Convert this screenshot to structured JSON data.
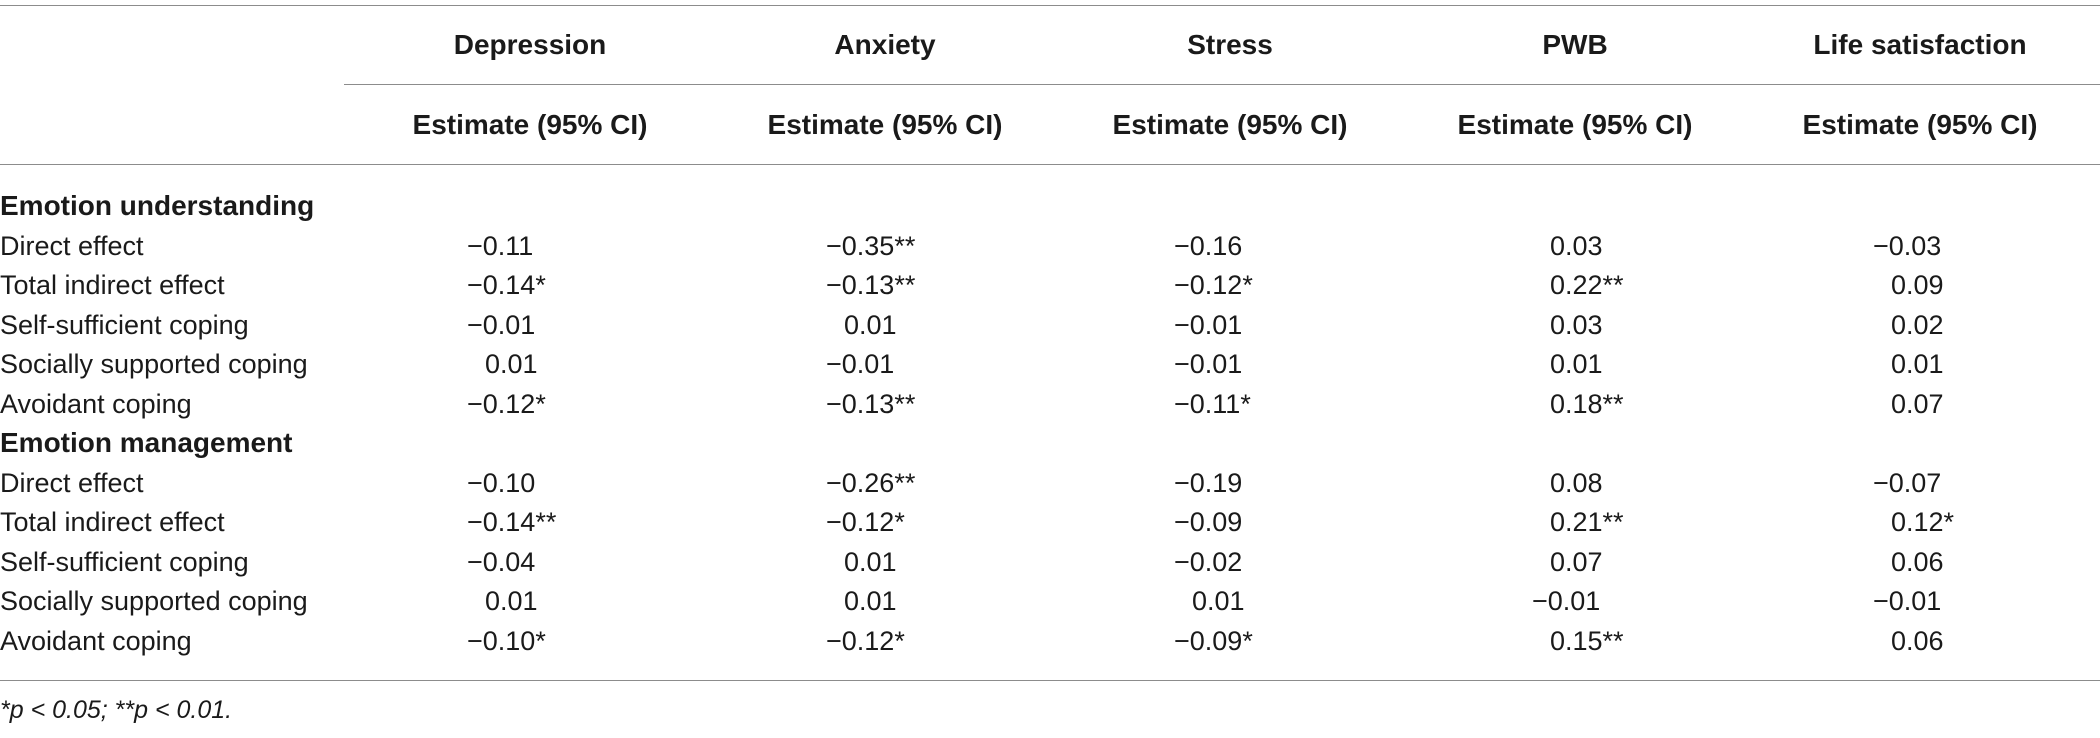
{
  "table": {
    "outcomes": [
      "Depression",
      "Anxiety",
      "Stress",
      "PWB",
      "Life satisfaction"
    ],
    "subheader": "Estimate (95% CI)",
    "sections": [
      {
        "title": "Emotion understanding",
        "rows": [
          {
            "label": "Direct effect",
            "values": [
              "−0.11",
              "−0.35**",
              "−0.16",
              "0.03",
              "−0.03"
            ]
          },
          {
            "label": "Total indirect effect",
            "values": [
              "−0.14*",
              "−0.13**",
              "−0.12*",
              "0.22**",
              "0.09"
            ]
          },
          {
            "label": "Self-sufficient coping",
            "values": [
              "−0.01",
              "0.01",
              "−0.01",
              "0.03",
              "0.02"
            ]
          },
          {
            "label": "Socially supported coping",
            "values": [
              "0.01",
              "−0.01",
              "−0.01",
              "0.01",
              "0.01"
            ]
          },
          {
            "label": "Avoidant coping",
            "values": [
              "−0.12*",
              "−0.13**",
              "−0.11*",
              "0.18**",
              "0.07"
            ]
          }
        ]
      },
      {
        "title": "Emotion management",
        "rows": [
          {
            "label": "Direct effect",
            "values": [
              "−0.10",
              "−0.26**",
              "−0.19",
              "0.08",
              "−0.07"
            ]
          },
          {
            "label": "Total indirect effect",
            "values": [
              "−0.14**",
              "−0.12*",
              "−0.09",
              "0.21**",
              "0.12*"
            ]
          },
          {
            "label": "Self-sufficient coping",
            "values": [
              "−0.04",
              "0.01",
              "−0.02",
              "0.07",
              "0.06"
            ]
          },
          {
            "label": "Socially supported coping",
            "values": [
              "0.01",
              "0.01",
              "0.01",
              "−0.01",
              "−0.01"
            ]
          },
          {
            "label": "Avoidant coping",
            "values": [
              "−0.10*",
              "−0.12*",
              "−0.09*",
              "0.15**",
              "0.06"
            ]
          }
        ]
      }
    ],
    "footnote": "*p < 0.05; **p < 0.01."
  }
}
